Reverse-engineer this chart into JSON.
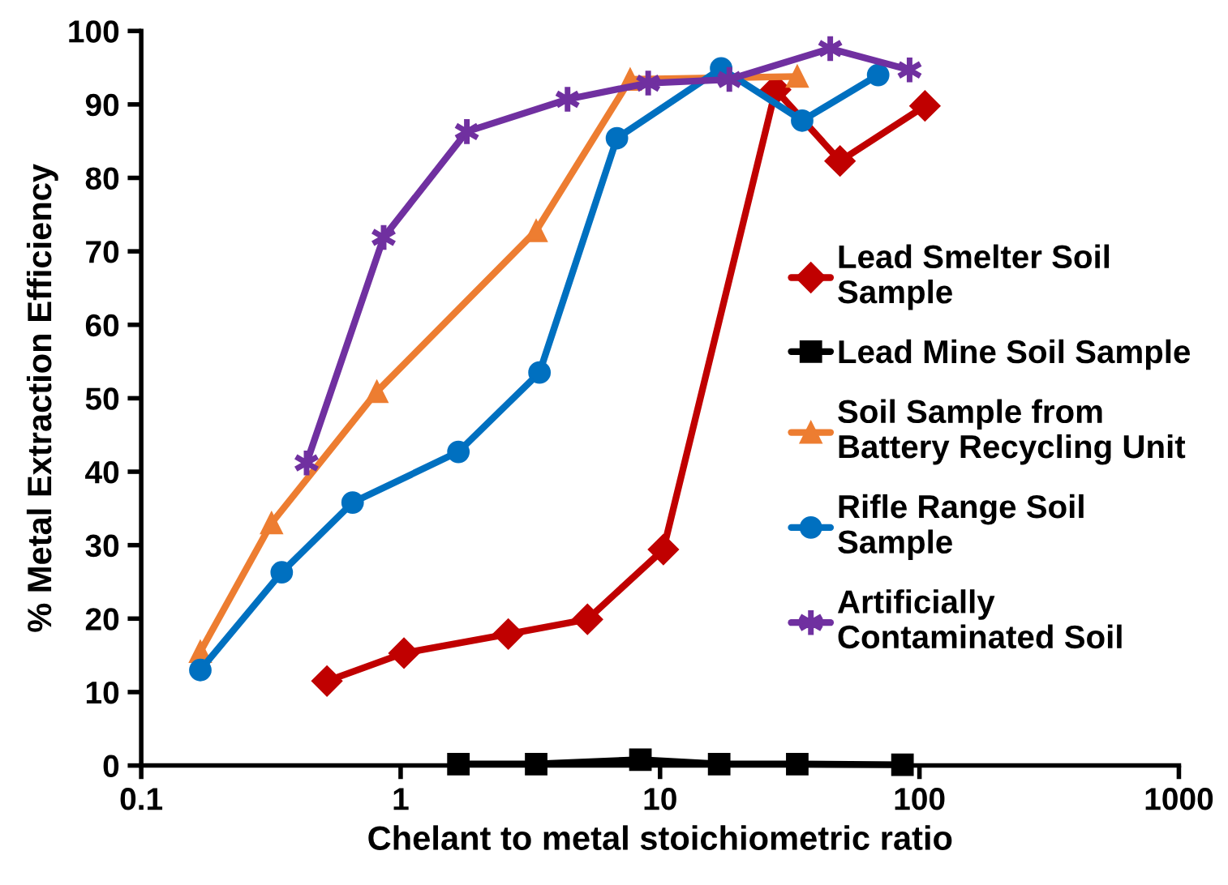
{
  "chart_data": {
    "type": "line",
    "xlabel": "Chelant to metal stoichiometric ratio",
    "ylabel": "% Metal Extraction Efficiency",
    "log": "x",
    "xlim": [
      0.1,
      1000
    ],
    "xticks": [
      0.1,
      1,
      10,
      100,
      1000
    ],
    "ylim": [
      0,
      100
    ],
    "yticks": [
      0,
      10,
      20,
      30,
      40,
      50,
      60,
      70,
      80,
      90,
      100
    ],
    "grid": false,
    "legend": "right",
    "line_style": "solid",
    "series": [
      {
        "name": "Lead Smelter Soil\nSample",
        "color": "#c00000",
        "marker": "diamond",
        "x": [
          0.52,
          1.03,
          2.6,
          5.25,
          10.3,
          27.9,
          49.4,
          105
        ],
        "values": [
          11.5,
          15.3,
          17.9,
          19.9,
          29.4,
          92,
          82.3,
          89.8
        ]
      },
      {
        "name": "Lead Mine Soil Sample",
        "color": "#000000",
        "marker": "square",
        "x": [
          1.67,
          3.33,
          8.4,
          16.9,
          33.8,
          86
        ],
        "values": [
          0.2,
          0.2,
          0.8,
          0.2,
          0.2,
          0.1
        ]
      },
      {
        "name": "Soil Sample from\nBattery Recycling Unit",
        "color": "#ed7d31",
        "marker": "triangle",
        "x": [
          0.169,
          0.318,
          0.81,
          3.33,
          7.67,
          33.8
        ],
        "values": [
          15.5,
          33,
          50.9,
          72.8,
          93.4,
          93.8
        ]
      },
      {
        "name": "Rifle Range Soil\nSample",
        "color": "#0070c0",
        "marker": "circle",
        "x": [
          0.169,
          0.348,
          0.653,
          1.67,
          3.43,
          6.82,
          17.2,
          35.3,
          69.3
        ],
        "values": [
          13,
          26.3,
          35.8,
          42.7,
          53.5,
          85.4,
          94.9,
          87.8,
          94
        ]
      },
      {
        "name": "Artificially\nContaminated Soil",
        "color": "#7030a0",
        "marker": "cross",
        "x": [
          0.434,
          0.86,
          1.8,
          4.4,
          9.0,
          18.5,
          45.3,
          91.6
        ],
        "values": [
          41.2,
          71.9,
          86.3,
          90.7,
          92.9,
          93.4,
          97.6,
          94.7
        ]
      }
    ]
  }
}
